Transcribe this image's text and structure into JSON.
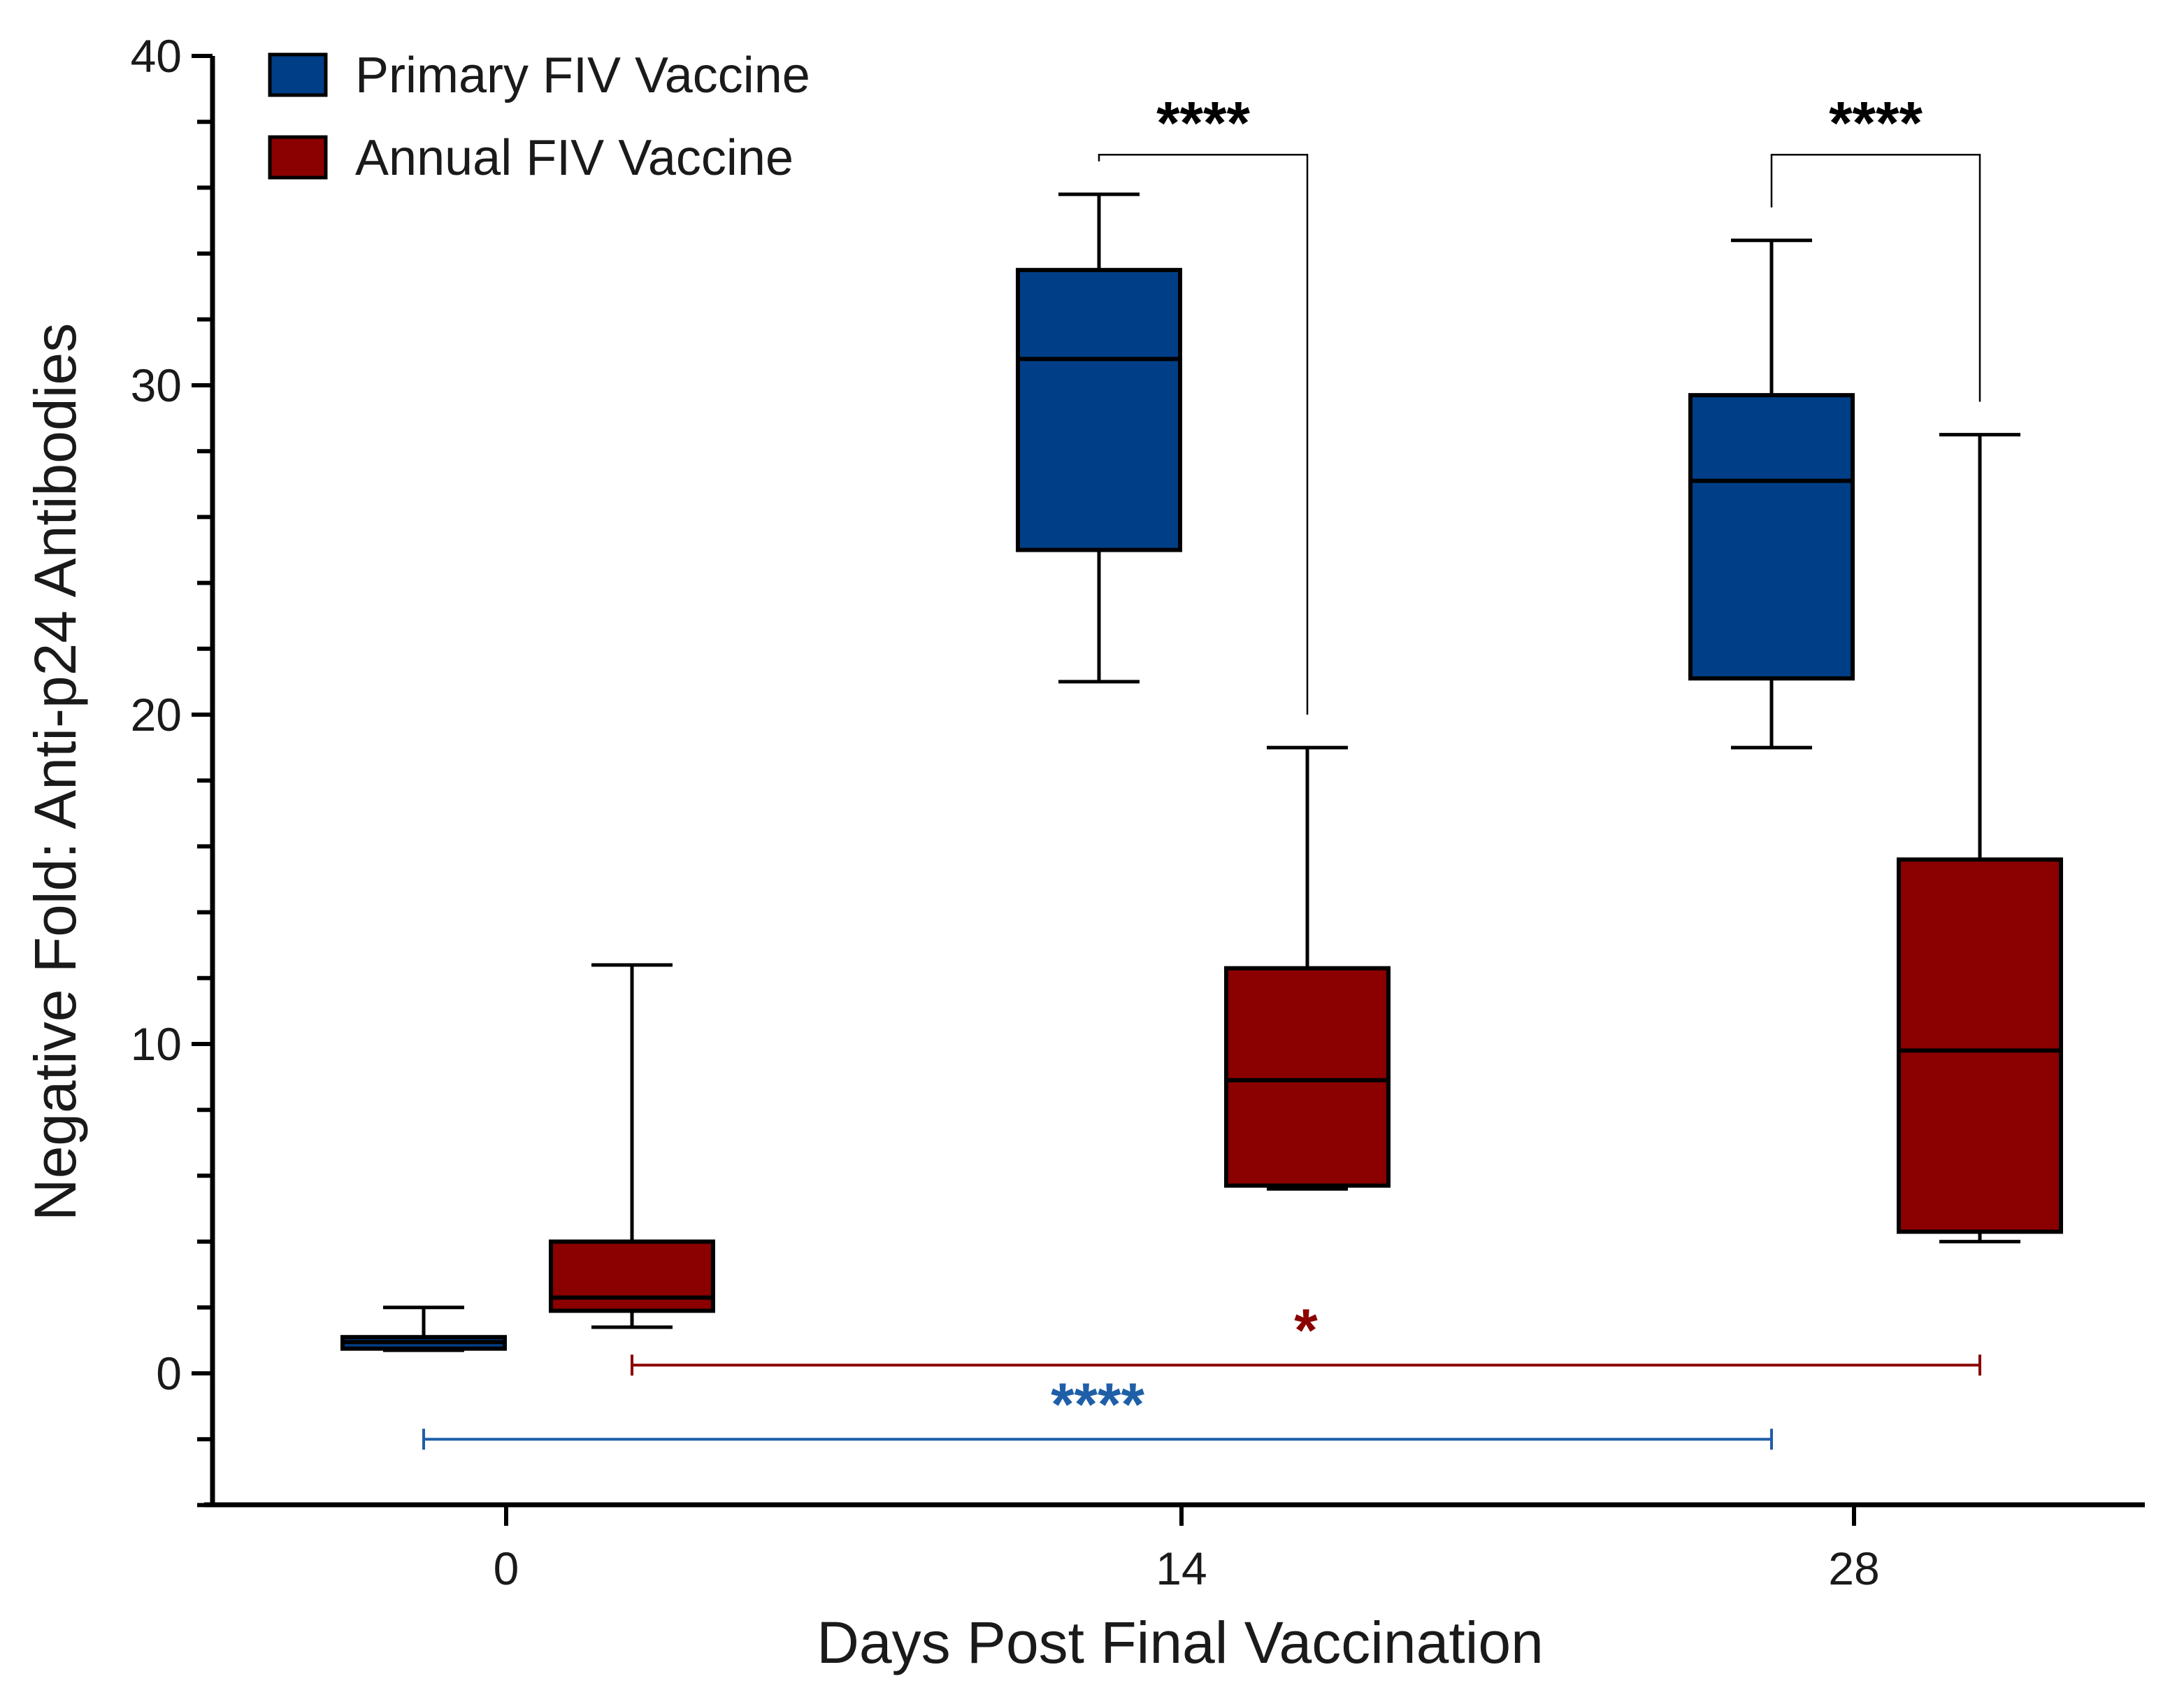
{
  "chart_data": {
    "type": "box",
    "title": "",
    "xlabel": "Days Post Final Vaccination",
    "ylabel": "Negative Fold:  Anti-p24 Antibodies",
    "ylim": [
      -4,
      40
    ],
    "yticks_major": [
      0,
      10,
      20,
      30,
      40
    ],
    "ytick_labels": [
      "0",
      "10",
      "20",
      "30",
      "40"
    ],
    "yticks_minor_step": 2,
    "categories": [
      "0",
      "14",
      "28"
    ],
    "legend_position": "top-left",
    "series": [
      {
        "name": "Primary FIV Vaccine",
        "color": "#003f87",
        "boxes": [
          {
            "category": "0",
            "min": 0.7,
            "q1": 0.75,
            "median": 0.95,
            "q3": 1.1,
            "max": 2.0
          },
          {
            "category": "14",
            "min": 21.0,
            "q1": 25.0,
            "median": 30.8,
            "q3": 33.5,
            "max": 35.8
          },
          {
            "category": "28",
            "min": 19.0,
            "q1": 21.1,
            "median": 27.1,
            "q3": 29.7,
            "max": 34.4
          }
        ]
      },
      {
        "name": "Annual FIV Vaccine",
        "color": "#8b0000",
        "boxes": [
          {
            "category": "0",
            "min": 1.4,
            "q1": 1.9,
            "median": 2.3,
            "q3": 4.0,
            "max": 12.4
          },
          {
            "category": "14",
            "min": 5.6,
            "q1": 5.7,
            "median": 8.9,
            "q3": 12.3,
            "max": 19.0
          },
          {
            "category": "28",
            "min": 4.0,
            "q1": 4.3,
            "median": 9.8,
            "q3": 15.6,
            "max": 28.5
          }
        ]
      }
    ],
    "annotations": [
      {
        "label": "****",
        "type": "pairwise",
        "category": "14",
        "color": "#000000",
        "bar_y": 37.0,
        "left_drop_to": 36.8,
        "right_drop_to": 20.0
      },
      {
        "label": "****",
        "type": "pairwise",
        "category": "28",
        "color": "#000000",
        "bar_y": 37.0,
        "left_drop_to": 35.4,
        "right_drop_to": 29.5
      },
      {
        "label": "*",
        "type": "range",
        "series": "Annual FIV Vaccine",
        "from": "0",
        "to": "28",
        "color": "#8b0000",
        "bar_y": 0.25
      },
      {
        "label": "****",
        "type": "range",
        "series": "Primary FIV Vaccine",
        "from": "0",
        "to": "28",
        "color": "#1f5fa8",
        "bar_y": -2.0
      }
    ]
  }
}
